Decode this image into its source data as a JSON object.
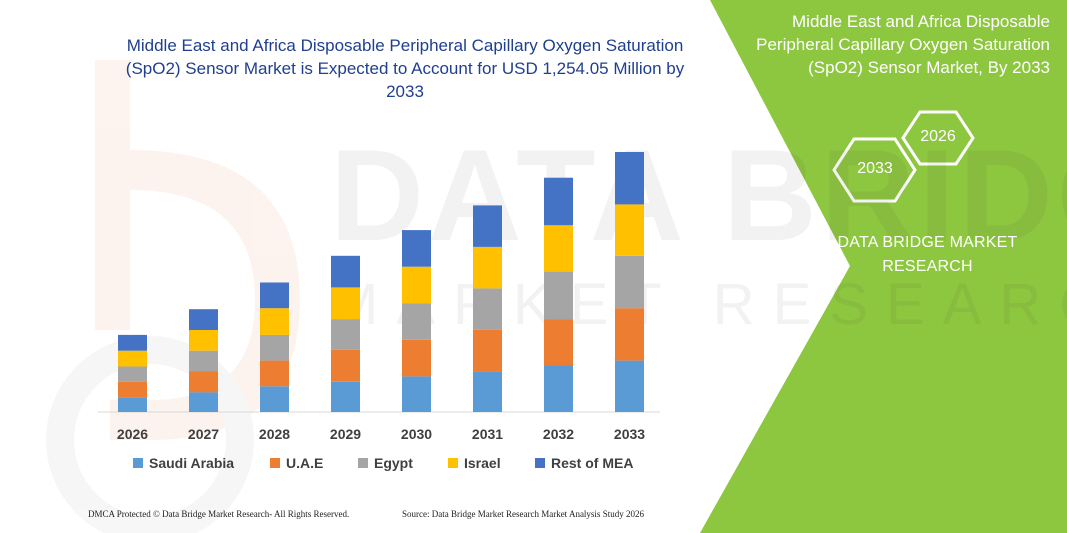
{
  "header": {
    "title": "Middle East and Africa Disposable Peripheral Capillary Oxygen Saturation (SpO2) Sensor Market is Expected to Account for USD 1,254.05 Million by 2033"
  },
  "right_panel": {
    "title": "Middle East and Africa Disposable Peripheral Capillary Oxygen Saturation (SpO2) Sensor Market, By 2033",
    "hex_left": "2033",
    "hex_right": "2026",
    "brand": "DATA BRIDGE MARKET RESEARCH",
    "bg_color": "#8dc63f"
  },
  "footer": {
    "left": "DMCA Protected © Data Bridge Market Research-  All Rights Reserved.",
    "right": "Source: Data Bridge Market Research  Market Analysis Study 2026"
  },
  "watermark": {
    "line1": "DATA BRIDGE",
    "line2": "MARKET RESEARCH"
  },
  "chart_data": {
    "type": "bar",
    "stacked": true,
    "categories": [
      "2026",
      "2027",
      "2028",
      "2029",
      "2030",
      "2031",
      "2032",
      "2033"
    ],
    "series": [
      {
        "name": "Saudi Arabia",
        "color": "#5b9bd5",
        "values": [
          15,
          20,
          26,
          31,
          36,
          41,
          47,
          52
        ]
      },
      {
        "name": "U.A.E",
        "color": "#ed7d31",
        "values": [
          16,
          21,
          26,
          32,
          37,
          42,
          47,
          53
        ]
      },
      {
        "name": "Egypt",
        "color": "#a5a5a5",
        "values": [
          15,
          21,
          26,
          31,
          37,
          42,
          48,
          53
        ]
      },
      {
        "name": "Israel",
        "color": "#ffc000",
        "values": [
          16,
          21,
          27,
          32,
          37,
          42,
          47,
          52
        ]
      },
      {
        "name": "Rest of MEA",
        "color": "#4472c4",
        "values": [
          16,
          21,
          26,
          32,
          37,
          42,
          48,
          53
        ]
      }
    ],
    "legend_position": "bottom",
    "grid": false,
    "y_axis_visible": false,
    "ylim": [
      0,
      265
    ]
  }
}
